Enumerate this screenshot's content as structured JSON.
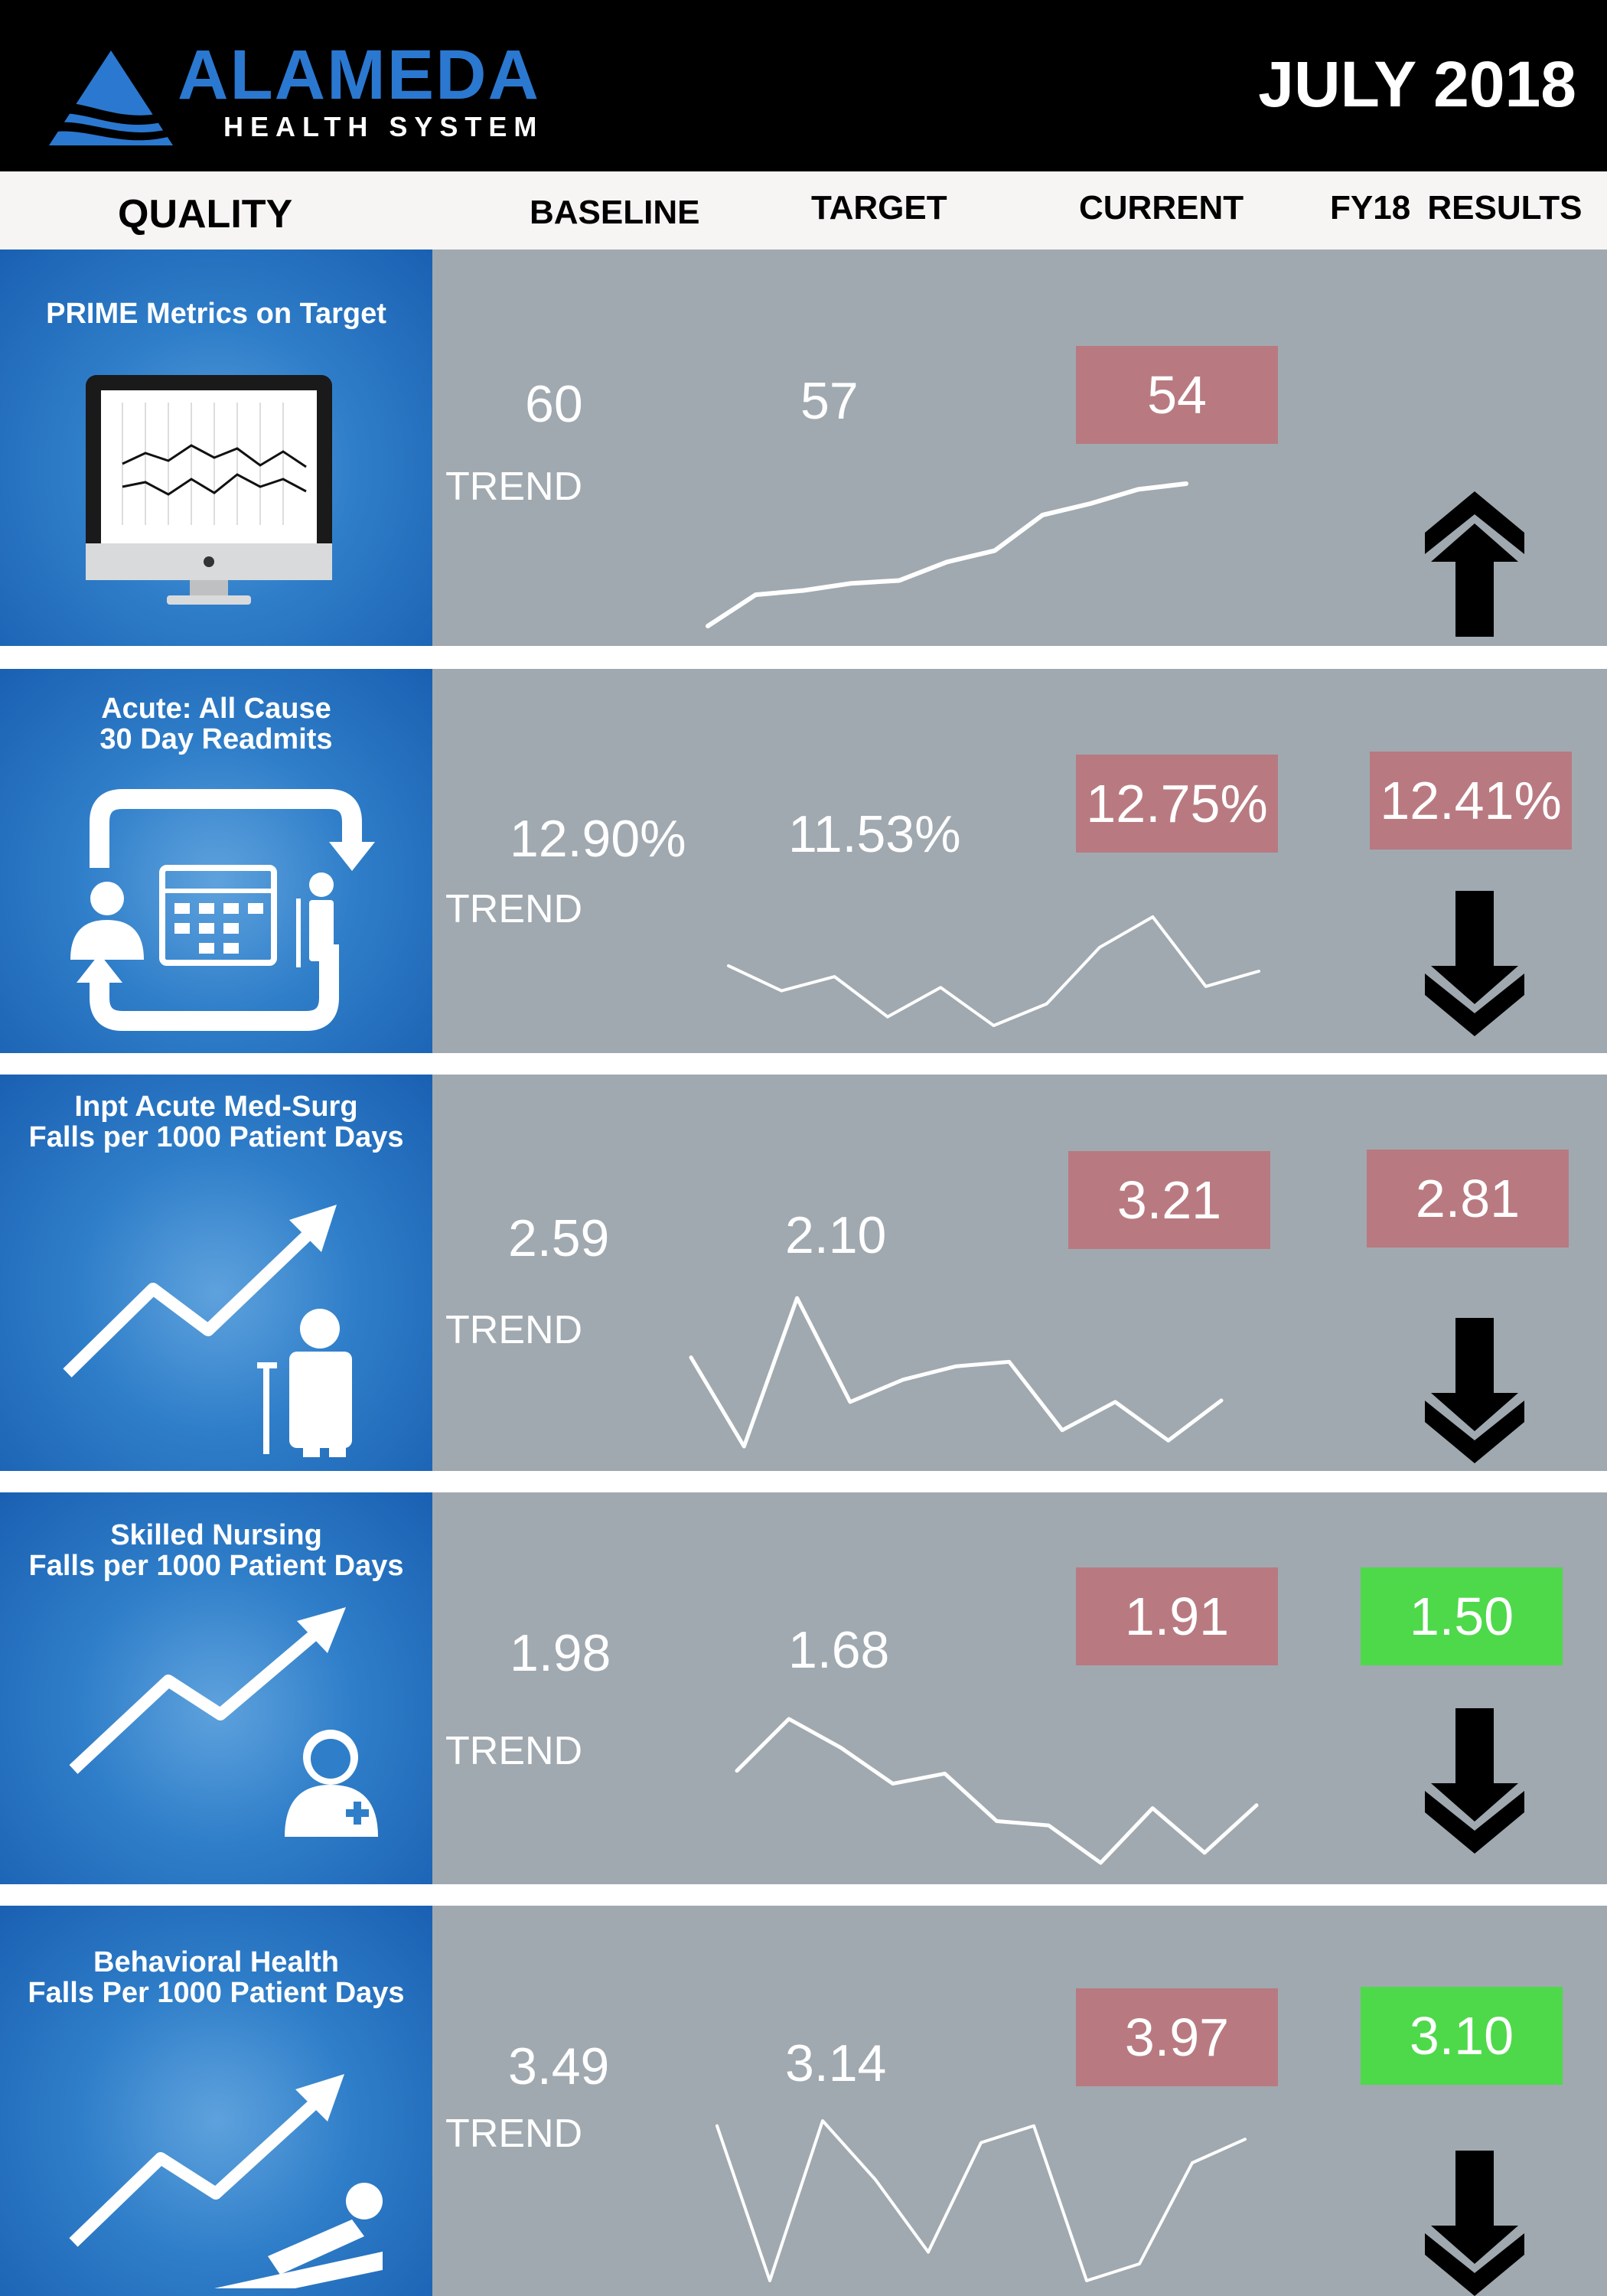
{
  "header": {
    "brand_name": "ALAMEDA",
    "brand_sub": "HEALTH SYSTEM",
    "date": "JULY 2018"
  },
  "columns": {
    "quality": "QUALITY",
    "baseline": "BASELINE",
    "target": "TARGET",
    "current": "CURRENT",
    "fy18": "FY18 RESULTS"
  },
  "trend_label": "TREND",
  "colors": {
    "current_badge": "#b87a80",
    "good_badge": "#4ed94a",
    "brand_blue": "#2b78d0"
  },
  "metrics": [
    {
      "title": [
        "PRIME Metrics on Target"
      ],
      "icon": "monitor-chart-icon",
      "baseline": "60",
      "target": "57",
      "current": "54",
      "fy18": "",
      "fy18_status": "none",
      "trend_direction": "up",
      "trend": [
        0.0,
        0.22,
        0.25,
        0.3,
        0.32,
        0.45,
        0.53,
        0.78,
        0.86,
        0.96,
        1.0
      ]
    },
    {
      "title": [
        "Acute: All Cause",
        "30 Day Readmits"
      ],
      "icon": "readmission-cycle-icon",
      "baseline": "12.90%",
      "target": "11.53%",
      "current": "12.75%",
      "fy18": "12.41%",
      "fy18_status": "red",
      "trend_direction": "down",
      "trend": [
        0.55,
        0.32,
        0.45,
        0.08,
        0.35,
        0.0,
        0.2,
        0.72,
        1.0,
        0.36,
        0.5
      ]
    },
    {
      "title": [
        "Inpt Acute Med-Surg",
        "Falls per 1000 Patient Days"
      ],
      "icon": "rising-falls-crutch-icon",
      "baseline": "2.59",
      "target": "2.10",
      "current": "3.21",
      "fy18": "2.81",
      "fy18_status": "red",
      "trend_direction": "down",
      "trend": [
        0.6,
        0.0,
        1.0,
        0.3,
        0.45,
        0.54,
        0.57,
        0.11,
        0.3,
        0.04,
        0.31
      ]
    },
    {
      "title": [
        "Skilled Nursing",
        "Falls per 1000 Patient Days"
      ],
      "icon": "rising-falls-nurse-icon",
      "baseline": "1.98",
      "target": "1.68",
      "current": "1.91",
      "fy18": "1.50",
      "fy18_status": "green",
      "trend_direction": "down",
      "trend": [
        0.64,
        1.0,
        0.8,
        0.55,
        0.62,
        0.29,
        0.26,
        0.0,
        0.38,
        0.07,
        0.4
      ]
    },
    {
      "title": [
        "Behavioral Health",
        "Falls Per 1000 Patient Days"
      ],
      "icon": "rising-falls-bed-icon",
      "baseline": "3.49",
      "target": "3.14",
      "current": "3.97",
      "fy18": "3.10",
      "fy18_status": "green",
      "trend_direction": "down",
      "trend": [
        0.92,
        0.0,
        0.95,
        0.6,
        0.17,
        0.82,
        0.92,
        0.0,
        0.1,
        0.7,
        0.84
      ]
    }
  ]
}
